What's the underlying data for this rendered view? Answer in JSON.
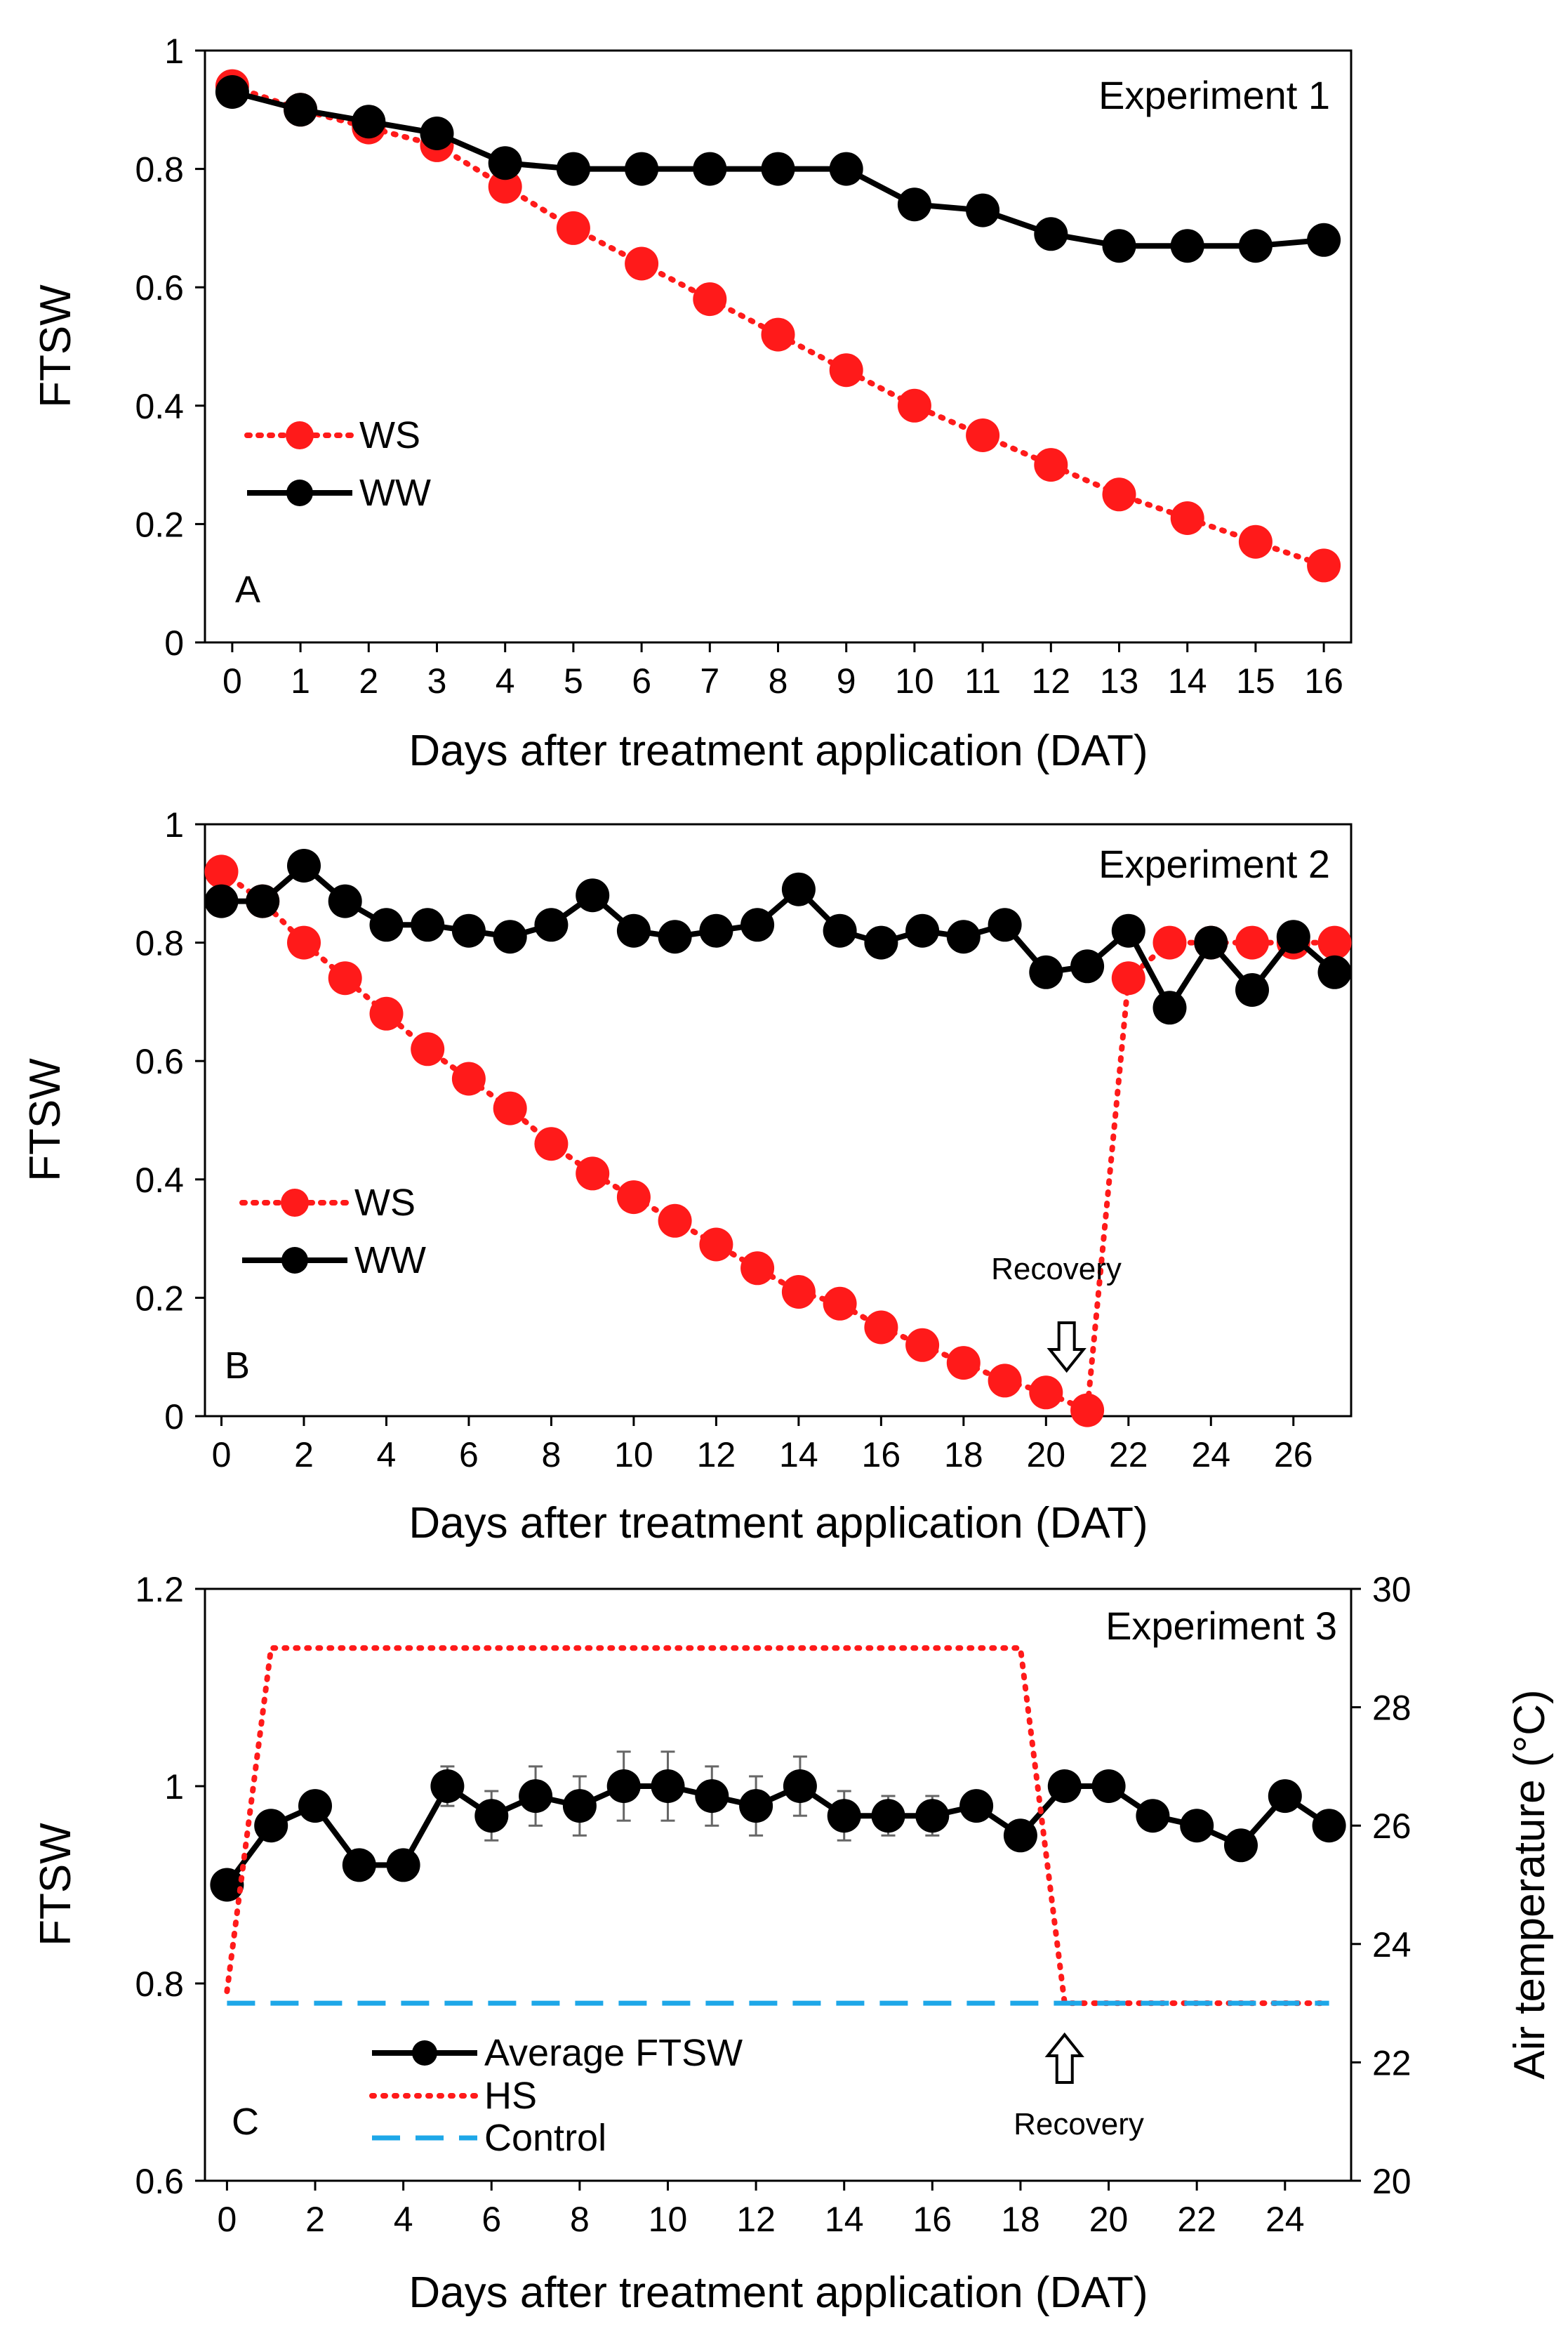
{
  "charts": [
    {
      "type": "line",
      "panel_letter": "A",
      "annotation": "Experiment 1",
      "xlabel": "Days after treatment application (DAT)",
      "ylabel": "FTSW",
      "xlim": [
        -0.4,
        16.4
      ],
      "ylim": [
        0,
        1
      ],
      "x_ticks": [
        0,
        1,
        2,
        3,
        4,
        5,
        6,
        7,
        8,
        9,
        10,
        11,
        12,
        13,
        14,
        15,
        16
      ],
      "y_ticks": [
        0,
        0.2,
        0.4,
        0.6,
        0.8,
        1
      ],
      "y_tick_labels": [
        "0",
        "0.2",
        "0.4",
        "0.6",
        "0.8",
        "1"
      ],
      "legend_position": "lower-left",
      "series": [
        {
          "name": "WS",
          "style": "dotted-red-markers",
          "color": "#ff1a1a",
          "x": [
            0,
            1,
            2,
            3,
            4,
            5,
            6,
            7,
            8,
            9,
            10,
            11,
            12,
            13,
            14,
            15,
            16
          ],
          "values": [
            0.94,
            0.9,
            0.87,
            0.84,
            0.77,
            0.7,
            0.64,
            0.58,
            0.52,
            0.46,
            0.4,
            0.35,
            0.3,
            0.25,
            0.21,
            0.17,
            0.13
          ]
        },
        {
          "name": "WW",
          "style": "solid-black-markers",
          "color": "#000000",
          "x": [
            0,
            1,
            2,
            3,
            4,
            5,
            6,
            7,
            8,
            9,
            10,
            11,
            12,
            13,
            14,
            15,
            16
          ],
          "values": [
            0.93,
            0.9,
            0.88,
            0.86,
            0.81,
            0.8,
            0.8,
            0.8,
            0.8,
            0.8,
            0.74,
            0.73,
            0.69,
            0.67,
            0.67,
            0.67,
            0.68
          ]
        }
      ]
    },
    {
      "type": "line",
      "panel_letter": "B",
      "annotation": "Experiment 2",
      "xlabel": "Days after treatment application (DAT)",
      "ylabel": "FTSW",
      "xlim": [
        -0.4,
        27.4
      ],
      "ylim": [
        0,
        1
      ],
      "x_ticks": [
        0,
        2,
        4,
        6,
        8,
        10,
        12,
        14,
        16,
        18,
        20,
        22,
        24,
        26
      ],
      "y_ticks": [
        0,
        0.2,
        0.4,
        0.6,
        0.8,
        1
      ],
      "y_tick_labels": [
        "0",
        "0.2",
        "0.4",
        "0.6",
        "0.8",
        "1"
      ],
      "legend_position": "lower-left",
      "recovery_label": "Recovery",
      "recovery_day": 20.5,
      "series": [
        {
          "name": "WS",
          "style": "dotted-red-markers",
          "color": "#ff1a1a",
          "x": [
            0,
            1,
            2,
            3,
            4,
            5,
            6,
            7,
            8,
            9,
            10,
            11,
            12,
            13,
            14,
            15,
            16,
            17,
            18,
            19,
            20,
            21,
            22,
            23,
            24,
            25,
            26,
            27
          ],
          "values": [
            0.92,
            0.87,
            0.8,
            0.74,
            0.68,
            0.62,
            0.57,
            0.52,
            0.46,
            0.41,
            0.37,
            0.33,
            0.29,
            0.25,
            0.21,
            0.19,
            0.15,
            0.12,
            0.09,
            0.06,
            0.04,
            0.01,
            0.74,
            0.8,
            0.8,
            0.8,
            0.8,
            0.8
          ]
        },
        {
          "name": "WW",
          "style": "solid-black-markers",
          "color": "#000000",
          "x": [
            0,
            1,
            2,
            3,
            4,
            5,
            6,
            7,
            8,
            9,
            10,
            11,
            12,
            13,
            14,
            15,
            16,
            17,
            18,
            19,
            20,
            21,
            22,
            23,
            24,
            25,
            26,
            27
          ],
          "values": [
            0.87,
            0.87,
            0.93,
            0.87,
            0.83,
            0.83,
            0.82,
            0.81,
            0.83,
            0.88,
            0.82,
            0.81,
            0.82,
            0.83,
            0.89,
            0.82,
            0.8,
            0.82,
            0.81,
            0.83,
            0.75,
            0.76,
            0.82,
            0.69,
            0.8,
            0.72,
            0.81,
            0.75
          ]
        }
      ]
    },
    {
      "type": "line",
      "panel_letter": "C",
      "annotation": "Experiment 3",
      "xlabel": "Days after treatment application (DAT)",
      "ylabel": "FTSW",
      "y2label": "Air temperature (°C)",
      "xlim": [
        -0.5,
        25.5
      ],
      "ylim": [
        0.6,
        1.2
      ],
      "y2lim": [
        20,
        30
      ],
      "x_ticks": [
        0,
        2,
        4,
        6,
        8,
        10,
        12,
        14,
        16,
        18,
        20,
        22,
        24
      ],
      "y_ticks": [
        0.6,
        0.8,
        1.0,
        1.2
      ],
      "y_tick_labels": [
        "0.6",
        "0.8",
        "1",
        "1.2"
      ],
      "y2_ticks": [
        20,
        22,
        24,
        26,
        28,
        30
      ],
      "legend_position": "lower-left",
      "recovery_label": "Recovery",
      "recovery_day": 19,
      "series": [
        {
          "name": "Average FTSW",
          "axis": "left",
          "style": "solid-black-markers-errorbars",
          "color": "#000000",
          "x": [
            0,
            1,
            2,
            3,
            4,
            5,
            6,
            7,
            8,
            9,
            10,
            11,
            12,
            13,
            14,
            15,
            16,
            17,
            18,
            19,
            20,
            21,
            22,
            23,
            24,
            25
          ],
          "values": [
            0.9,
            0.96,
            0.98,
            0.92,
            0.92,
            1.0,
            0.97,
            0.99,
            0.98,
            1.0,
            1.0,
            0.99,
            0.98,
            1.0,
            0.97,
            0.97,
            0.97,
            0.98,
            0.95,
            1.0,
            1.0,
            0.97,
            0.96,
            0.94,
            0.99,
            0.96
          ],
          "errors": [
            0,
            0,
            0,
            0,
            0,
            0.02,
            0.025,
            0.03,
            0.03,
            0.035,
            0.035,
            0.03,
            0.03,
            0.03,
            0.025,
            0.02,
            0.02,
            0,
            0,
            0,
            0,
            0,
            0,
            0,
            0,
            0
          ]
        },
        {
          "name": "HS",
          "axis": "right",
          "style": "dotted-red",
          "color": "#ff1a1a",
          "x": [
            0,
            1,
            18,
            19,
            25
          ],
          "values": [
            23.2,
            29,
            29,
            23,
            23
          ]
        },
        {
          "name": "Control",
          "axis": "right",
          "style": "dashed-blue",
          "color": "#1ea7e8",
          "x": [
            0,
            25
          ],
          "values": [
            23,
            23
          ]
        }
      ]
    }
  ]
}
